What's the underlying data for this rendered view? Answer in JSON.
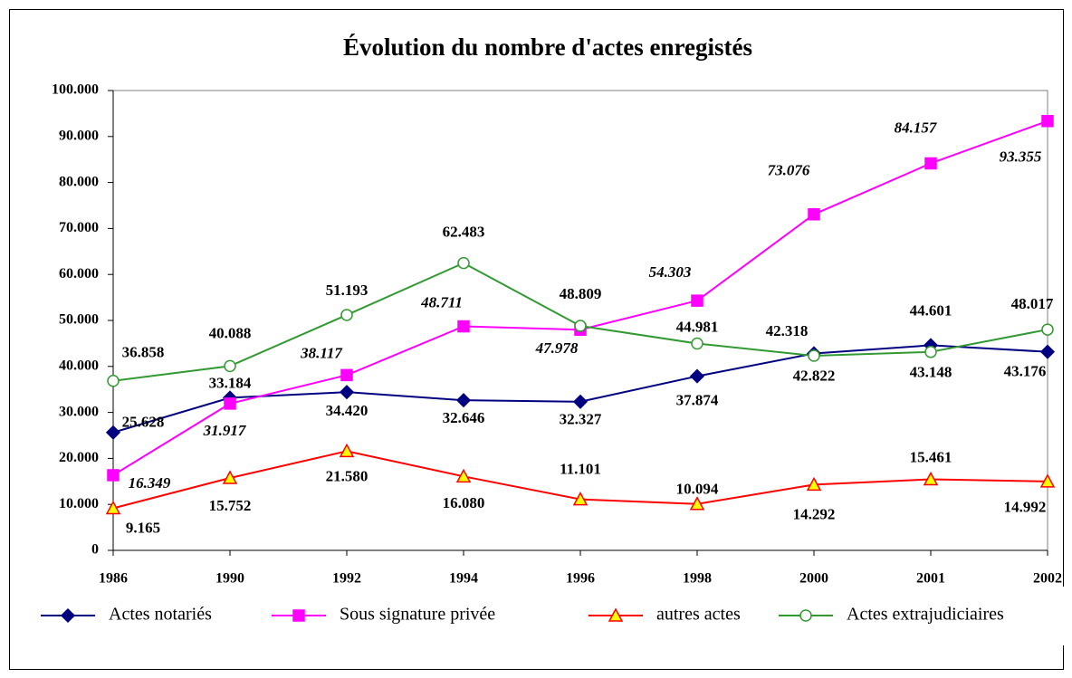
{
  "chart_data": {
    "type": "line",
    "title": "Évolution du nombre d'actes enregistés",
    "categories": [
      "1986",
      "1990",
      "1992",
      "1994",
      "1996",
      "1998",
      "2000",
      "2001",
      "2002"
    ],
    "ylim": [
      0,
      100000
    ],
    "yticks": [
      0,
      {
        "value": 10000,
        "label": "10.000"
      },
      {
        "value": 20000,
        "label": "20.000"
      },
      {
        "value": 30000,
        "label": "30.000"
      },
      {
        "value": 40000,
        "label": "40.000"
      },
      {
        "value": 50000,
        "label": "50.000"
      },
      {
        "value": 60000,
        "label": "60.000"
      },
      {
        "value": 70000,
        "label": "70.000"
      },
      {
        "value": 80000,
        "label": "80.000"
      },
      {
        "value": 90000,
        "label": "90.000"
      },
      {
        "value": 100000,
        "label": "100.000"
      }
    ],
    "grid": false,
    "legend": "bottom",
    "series": [
      {
        "name": "Actes notariés",
        "color": "#000080",
        "marker": "diamond",
        "marker_fill": "#000080",
        "values": [
          25628,
          33184,
          34420,
          32646,
          32327,
          37874,
          42822,
          44601,
          43176
        ],
        "value_labels": [
          "25.628",
          "33.184",
          "34.420",
          "32.646",
          "32.327",
          "37.874",
          "42.822",
          "44.601",
          "43.176"
        ]
      },
      {
        "name": "Sous signature privée",
        "color": "#FF00FF",
        "marker": "square",
        "marker_fill": "#FF00FF",
        "values": [
          16349,
          31917,
          38117,
          48711,
          47978,
          54303,
          73076,
          84157,
          93355
        ],
        "value_labels": [
          "16.349",
          "31.917",
          "38.117",
          "48.711",
          "47.978",
          "54.303",
          "73.076",
          "84.157",
          "93.355"
        ]
      },
      {
        "name": "autres actes",
        "color": "#FF0000",
        "marker": "triangle",
        "marker_fill": "#FFFF00",
        "values": [
          9165,
          15752,
          21580,
          16080,
          11101,
          10094,
          14292,
          15461,
          14992
        ],
        "value_labels": [
          "9.165",
          "15.752",
          "21.580",
          "16.080",
          "11.101",
          "10.094",
          "14.292",
          "15.461",
          "14.992"
        ]
      },
      {
        "name": "Actes extrajudiciaires",
        "color": "#339933",
        "marker": "circle",
        "marker_fill": "#FFFFFF",
        "values": [
          36858,
          40088,
          51193,
          62483,
          48809,
          44981,
          42318,
          43148,
          48017
        ],
        "value_labels": [
          "36.858",
          "40.088",
          "51.193",
          "62.483",
          "48.809",
          "44.981",
          "42.318",
          "43.148",
          "48.017"
        ]
      }
    ]
  }
}
